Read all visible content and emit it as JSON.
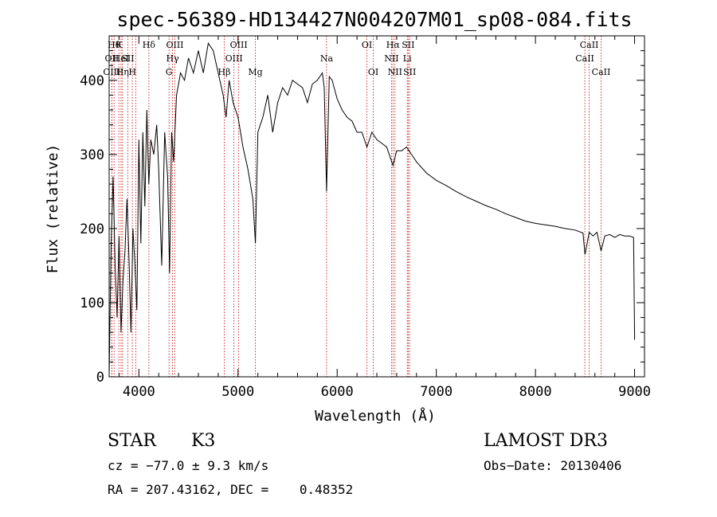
{
  "chart_data": {
    "type": "line",
    "title": "spec-56389-HD134427N004207M01_sp08-084.fits",
    "xlabel": "Wavelength (Å)",
    "ylabel": "Flux (relative)",
    "xlim": [
      3700,
      9100
    ],
    "ylim": [
      0,
      460
    ],
    "xticks": [
      4000,
      5000,
      6000,
      7000,
      8000,
      9000
    ],
    "yticks": [
      0,
      100,
      200,
      300,
      400
    ],
    "series": [
      {
        "name": "flux",
        "x": [
          3700,
          3720,
          3740,
          3760,
          3780,
          3800,
          3820,
          3840,
          3860,
          3880,
          3900,
          3920,
          3940,
          3960,
          3980,
          4000,
          4020,
          4040,
          4060,
          4080,
          4100,
          4120,
          4150,
          4180,
          4200,
          4230,
          4260,
          4290,
          4310,
          4330,
          4350,
          4380,
          4420,
          4460,
          4500,
          4550,
          4600,
          4650,
          4700,
          4750,
          4800,
          4850,
          4880,
          4910,
          4950,
          5000,
          5050,
          5100,
          5150,
          5175,
          5200,
          5250,
          5300,
          5350,
          5400,
          5450,
          5500,
          5550,
          5600,
          5650,
          5700,
          5750,
          5800,
          5850,
          5870,
          5893,
          5920,
          5950,
          6000,
          6050,
          6100,
          6150,
          6200,
          6250,
          6300,
          6350,
          6400,
          6450,
          6500,
          6563,
          6600,
          6650,
          6700,
          6750,
          6800,
          6900,
          7000,
          7100,
          7200,
          7300,
          7400,
          7500,
          7600,
          7700,
          7800,
          7900,
          8000,
          8100,
          8200,
          8300,
          8400,
          8480,
          8500,
          8542,
          8580,
          8620,
          8662,
          8700,
          8750,
          8800,
          8850,
          8900,
          8950,
          8990,
          9000
        ],
        "values": [
          0,
          180,
          270,
          150,
          80,
          190,
          60,
          130,
          170,
          240,
          160,
          60,
          200,
          150,
          90,
          320,
          180,
          330,
          230,
          360,
          260,
          320,
          300,
          340,
          280,
          150,
          330,
          270,
          140,
          330,
          290,
          380,
          410,
          400,
          430,
          410,
          440,
          410,
          450,
          440,
          410,
          380,
          350,
          400,
          370,
          350,
          310,
          280,
          240,
          180,
          330,
          350,
          380,
          330,
          370,
          390,
          380,
          400,
          395,
          390,
          370,
          395,
          400,
          410,
          390,
          250,
          405,
          400,
          375,
          360,
          350,
          345,
          330,
          330,
          310,
          330,
          320,
          315,
          310,
          285,
          305,
          305,
          310,
          300,
          290,
          275,
          265,
          258,
          250,
          243,
          237,
          231,
          226,
          220,
          215,
          210,
          207,
          205,
          203,
          200,
          198,
          194,
          165,
          195,
          190,
          195,
          170,
          190,
          192,
          188,
          192,
          190,
          190,
          188,
          50
        ]
      }
    ],
    "line_markers": [
      {
        "x": 3750,
        "label": "Hθ",
        "row": 0
      },
      {
        "x": 3727,
        "label": "OII",
        "row": 1
      },
      {
        "x": 3727,
        "label": "OIII",
        "row": 2
      },
      {
        "x": 3798,
        "label": "K",
        "row": 0
      },
      {
        "x": 3820,
        "label": "HeI",
        "row": 1
      },
      {
        "x": 3835,
        "label": "Hη",
        "row": 2
      },
      {
        "x": 3889,
        "label": "SII",
        "row": 1
      },
      {
        "x": 3934,
        "label": "H",
        "row": 2
      },
      {
        "x": 3969,
        "label": "",
        "row": -1
      },
      {
        "x": 4101,
        "label": "Hδ",
        "row": 0
      },
      {
        "x": 4304,
        "label": "G",
        "row": 2
      },
      {
        "x": 4340,
        "label": "Hγ",
        "row": 1
      },
      {
        "x": 4363,
        "label": "OIII",
        "row": 0
      },
      {
        "x": 4861,
        "label": "Hβ",
        "row": 2
      },
      {
        "x": 4959,
        "label": "OIII",
        "row": 1
      },
      {
        "x": 5007,
        "label": "OIII",
        "row": 0
      },
      {
        "x": 5175,
        "label": "Mg",
        "row": 2
      },
      {
        "x": 5893,
        "label": "Na",
        "row": 1
      },
      {
        "x": 6300,
        "label": "OI",
        "row": 0
      },
      {
        "x": 6364,
        "label": "OI",
        "row": 2
      },
      {
        "x": 6548,
        "label": "NII",
        "row": 1
      },
      {
        "x": 6563,
        "label": "Hα",
        "row": 0
      },
      {
        "x": 6583,
        "label": "NII",
        "row": 2
      },
      {
        "x": 6707,
        "label": "Li",
        "row": 1
      },
      {
        "x": 6716,
        "label": "SII",
        "row": 0
      },
      {
        "x": 6731,
        "label": "SII",
        "row": 2
      },
      {
        "x": 8498,
        "label": "CaII",
        "row": 1
      },
      {
        "x": 8542,
        "label": "CaII",
        "row": 0
      },
      {
        "x": 8662,
        "label": "CaII",
        "row": 2
      }
    ]
  },
  "info": {
    "class": "STAR",
    "subclass": "K3",
    "survey": "LAMOST DR3",
    "cz": "cz = −77.0 ± 9.3 km/s",
    "obs_date": "Obs−Date: 20130406",
    "radec": "RA = 207.43162, DEC =    0.48352"
  }
}
